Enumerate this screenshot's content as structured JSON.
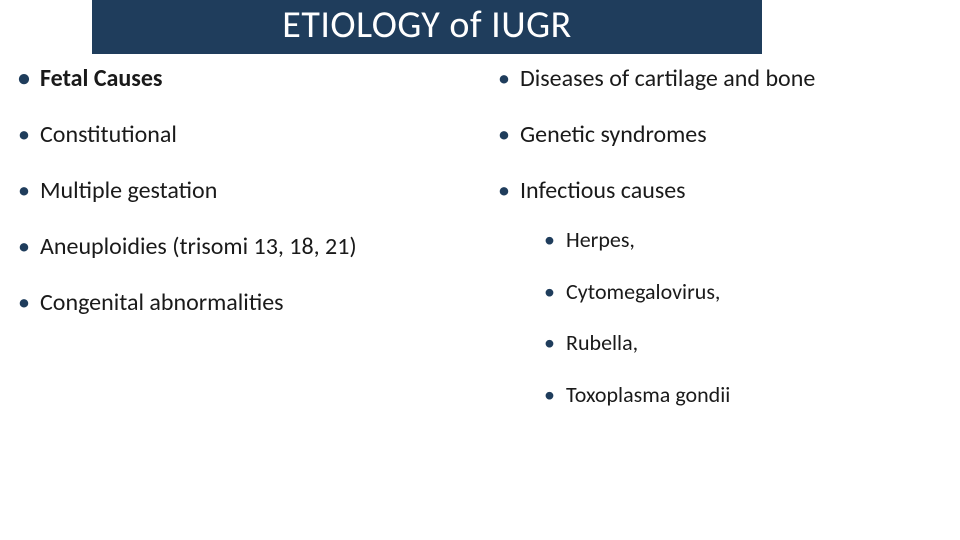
{
  "title": "ETIOLOGY of IUGR",
  "colors": {
    "title_bg": "#1f3d5c",
    "title_fg": "#ffffff",
    "bullet": "#1f3d5c",
    "text": "#1a1a1a",
    "page_bg": "#ffffff"
  },
  "typography": {
    "title_fontsize": 38,
    "lvl1_fontsize": 24,
    "lvl2_fontsize": 22,
    "font_family": "Calibri"
  },
  "left_column": [
    {
      "text": "Fetal Causes",
      "bold": true
    },
    {
      "text": "Constitutional",
      "bold": false
    },
    {
      "text": "Multiple gestation",
      "bold": false
    },
    {
      "text": "Aneuploidies (trisomi 13, 18, 21)",
      "bold": false
    },
    {
      "text": "Congenital abnormalities",
      "bold": false
    }
  ],
  "right_column": [
    {
      "text": "Diseases of cartilage and bone",
      "bold": false,
      "sub": []
    },
    {
      "text": "Genetic syndromes",
      "bold": false,
      "sub": []
    },
    {
      "text": "Infectious causes",
      "bold": false,
      "sub": [
        "Herpes,",
        "Cytomegalovirus,",
        "Rubella,",
        "Toxoplasma gondii"
      ]
    }
  ]
}
